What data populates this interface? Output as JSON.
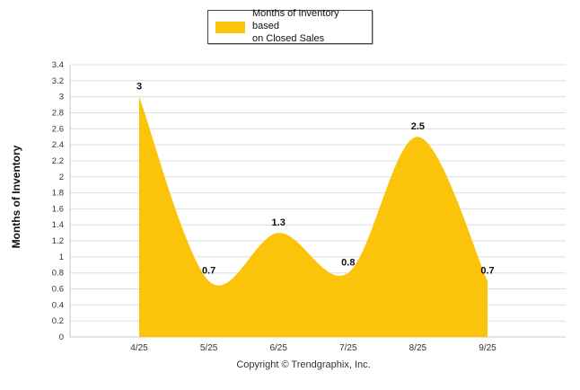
{
  "legend": {
    "lines": [
      "Months of Inventory based",
      "on Closed Sales"
    ]
  },
  "footer": {
    "copyright": "Copyright © Trendgraphix, Inc."
  },
  "chart_data": {
    "type": "area",
    "title": "",
    "series_name": "Months of Inventory based on Closed Sales",
    "categories": [
      "4/25",
      "5/25",
      "6/25",
      "7/25",
      "8/25",
      "9/25"
    ],
    "values": [
      3,
      0.7,
      1.3,
      0.8,
      2.5,
      0.7
    ],
    "data_labels": [
      "3",
      "0.7",
      "1.3",
      "0.8",
      "2.5",
      "0.7"
    ],
    "xlabel": "",
    "ylabel": "Months of Inventory",
    "ylim": [
      0,
      3.4
    ],
    "ytick_step": 0.2,
    "grid": true,
    "legend_position": "top",
    "colors": {
      "area": "#FCC30B",
      "grid": "#DEDEDE",
      "axis": "#C8C8C8",
      "tick_text": "#333333",
      "label_text": "#111111"
    }
  }
}
